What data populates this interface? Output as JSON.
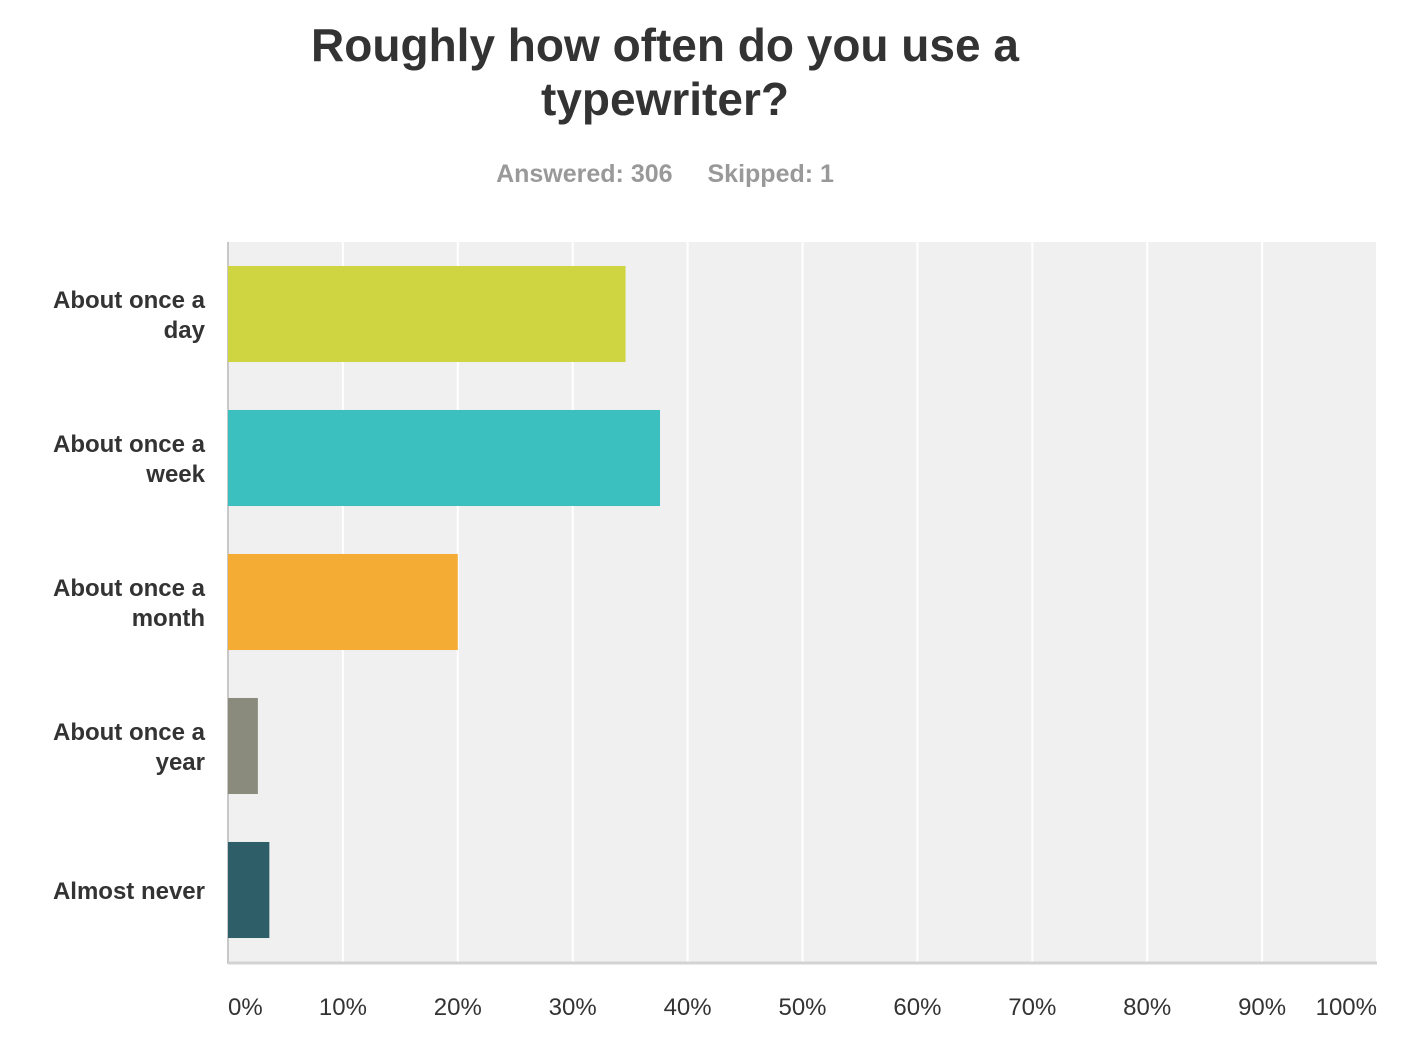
{
  "header": {
    "title_line1": "Roughly how often do you use a",
    "title_line2": "typewriter?",
    "answered": "Answered: 306",
    "skipped": "Skipped: 1"
  },
  "chart_data": {
    "type": "bar",
    "orientation": "horizontal",
    "title": "Roughly how often do you use a typewriter?",
    "categories": [
      [
        "About once a",
        "day"
      ],
      [
        "About once a",
        "week"
      ],
      [
        "About once a",
        "month"
      ],
      [
        "About once a",
        "year"
      ],
      [
        "Almost never"
      ]
    ],
    "values": [
      34.6,
      37.6,
      20.0,
      2.6,
      3.6
    ],
    "colors": [
      "#cfd541",
      "#3cbfbf",
      "#f5ac35",
      "#8b8b7d",
      "#2e5f69"
    ],
    "xlim": [
      0,
      100
    ],
    "ticks": [
      "0%",
      "10%",
      "20%",
      "30%",
      "40%",
      "50%",
      "60%",
      "70%",
      "80%",
      "90%",
      "100%"
    ],
    "grid": true,
    "background": "#f0f0f0"
  }
}
